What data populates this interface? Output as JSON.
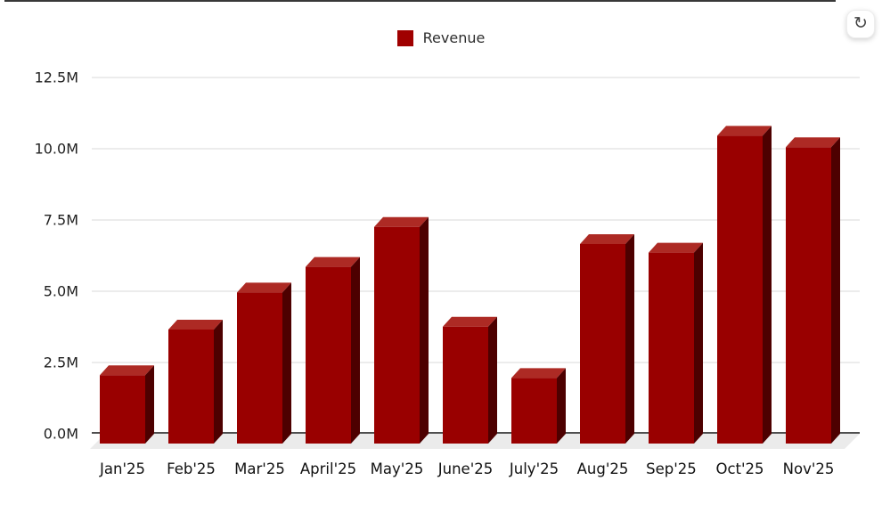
{
  "toolbar": {
    "refresh_button": {
      "icon": "refresh-icon",
      "glyph": "↻"
    }
  },
  "legend": {
    "position": "top-center",
    "items": [
      {
        "label": "Revenue",
        "marker_color": "#a00000"
      }
    ]
  },
  "chart_data": {
    "type": "bar",
    "style": "3d-column",
    "title": "",
    "xlabel": "",
    "ylabel": "",
    "categories": [
      "Jan'25",
      "Feb'25",
      "Mar'25",
      "April'25",
      "May'25",
      "June'25",
      "July'25",
      "Aug'25",
      "Sep'25",
      "Oct'25",
      "Nov'25"
    ],
    "series": [
      {
        "name": "Revenue",
        "color": "#990000",
        "values": [
          2.4,
          4.0,
          5.3,
          6.2,
          7.6,
          4.1,
          2.3,
          7.0,
          6.7,
          10.8,
          10.4
        ]
      }
    ],
    "value_unit": "M",
    "ylim": [
      0,
      12.5
    ],
    "yticks": [
      0,
      2.5,
      5,
      7.5,
      10,
      12.5
    ],
    "ytick_labels": [
      "0.0M",
      "2.5M",
      "5.0M",
      "7.5M",
      "10.0M",
      "12.5M"
    ],
    "grid": true,
    "legend_position": "top-center"
  },
  "colors": {
    "bar_front": "#990000",
    "bar_top": "#ad2a24",
    "bar_side": "#4d0000",
    "floor": "#ebebeb",
    "gridline": "#d9d9d9",
    "axis_line": "#4f4f4f",
    "tick_label": "#1f1f1f",
    "category_label": "#111111",
    "top_border": "#383838",
    "refresh_icon": "#444444"
  }
}
